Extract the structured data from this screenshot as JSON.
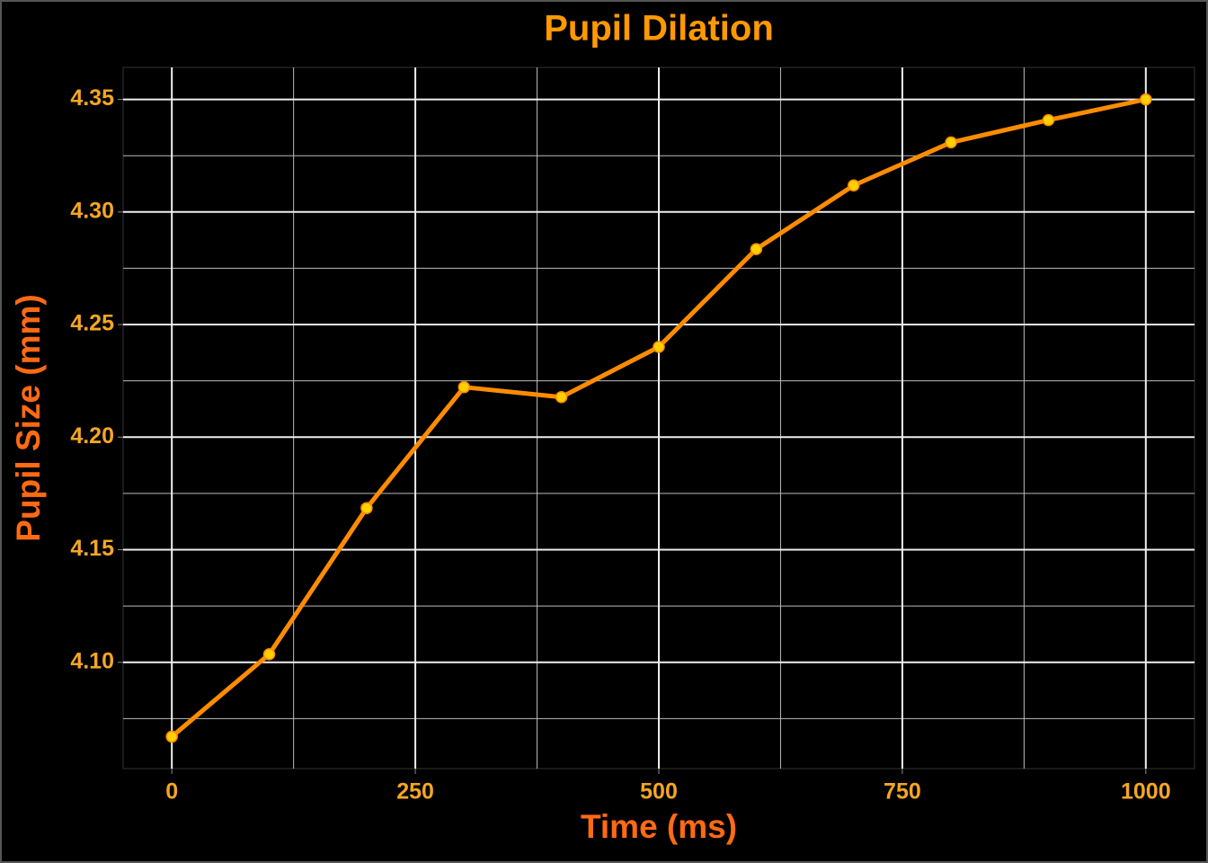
{
  "chart_data": {
    "type": "line",
    "title": "Pupil Dilation",
    "x_label": "Time (ms)",
    "y_label": "Pupil Size (mm)",
    "x": [
      0,
      100,
      200,
      300,
      400,
      500,
      600,
      700,
      800,
      900,
      1000
    ],
    "series": [
      {
        "name": "Pupil Size (mm)",
        "color": "#ff8c00",
        "point_color": "#ffd000",
        "values": [
          4.067,
          4.1036,
          4.1685,
          4.2222,
          4.2178,
          4.2401,
          4.2835,
          4.3118,
          4.3309,
          4.3408,
          4.35
        ]
      }
    ],
    "xlim": [
      -50,
      1050
    ],
    "xticks": [
      0,
      250,
      500,
      750,
      1000
    ],
    "x_minor_grid": [
      125,
      375,
      625,
      875
    ],
    "ylim": [
      4.0528,
      4.3642
    ],
    "yticks": [
      {
        "value": 4.1,
        "label": "4.10"
      },
      {
        "value": 4.15,
        "label": "4.15"
      },
      {
        "value": 4.2,
        "label": "4.20"
      },
      {
        "value": 4.25,
        "label": "4.25"
      },
      {
        "value": 4.3,
        "label": "4.30"
      },
      {
        "value": 4.35,
        "label": "4.35"
      }
    ],
    "y_minor_grid": [
      4.075,
      4.125,
      4.175,
      4.225,
      4.275,
      4.325
    ],
    "grid": true
  }
}
